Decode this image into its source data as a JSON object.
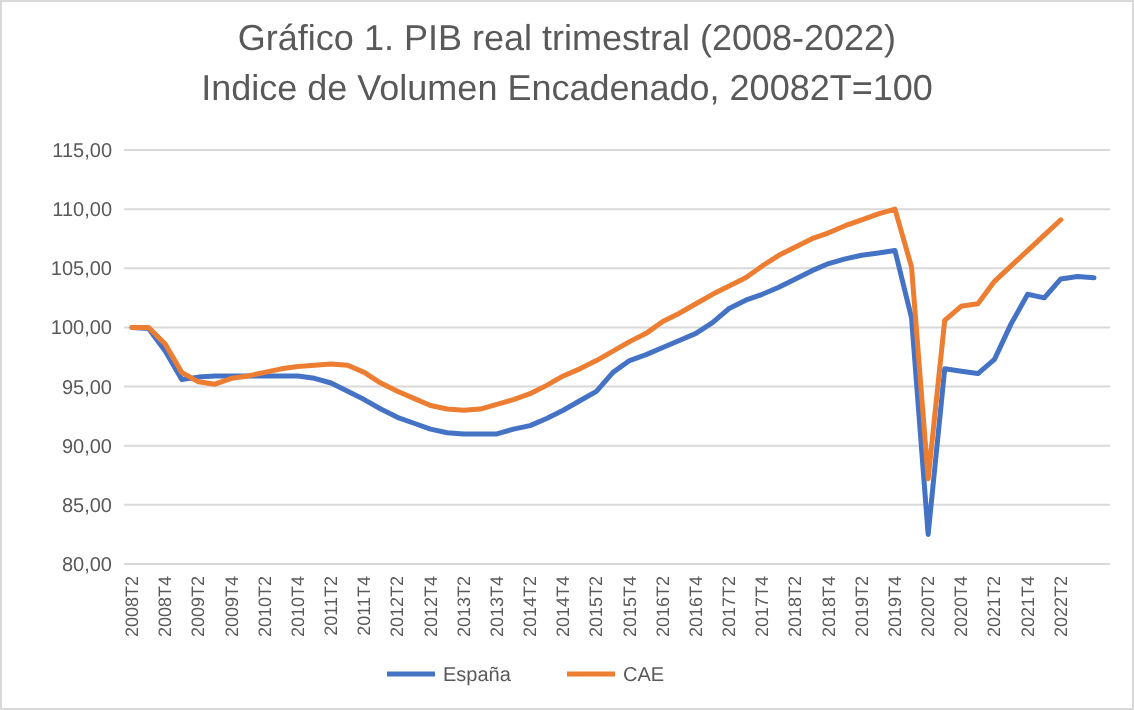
{
  "chart_data": {
    "type": "line",
    "title": "Gráfico 1. PIB real trimestral (2008-2022)",
    "subtitle": "Indice de Volumen Encadenado, 20082T=100",
    "categories": [
      "2008T2",
      null,
      "2008T4",
      null,
      "2009T2",
      null,
      "2009T4",
      null,
      "2010T2",
      null,
      "2010T4",
      null,
      "2011T2",
      null,
      "2011T4",
      null,
      "2012T2",
      null,
      "2012T4",
      null,
      "2013T2",
      null,
      "2013T4",
      null,
      "2014T2",
      null,
      "2014T4",
      null,
      "2015T2",
      null,
      "2015T4",
      null,
      "2016T2",
      null,
      "2016T4",
      null,
      "2017T2",
      null,
      "2017T4",
      null,
      "2018T2",
      null,
      "2018T4",
      null,
      "2019T2",
      null,
      "2019T4",
      null,
      "2020T2",
      null,
      "2020T4",
      null,
      "2021T2",
      null,
      "2021T4",
      null,
      "2022T2",
      null,
      null
    ],
    "series": [
      {
        "name": "España",
        "color": "#4472c4",
        "values": [
          100,
          99.9,
          98.0,
          95.6,
          95.8,
          95.9,
          95.9,
          95.9,
          95.9,
          95.9,
          95.9,
          95.7,
          95.3,
          94.6,
          93.9,
          93.1,
          92.4,
          91.9,
          91.4,
          91.1,
          91.0,
          91.0,
          91.0,
          91.4,
          91.7,
          92.3,
          93.0,
          93.8,
          94.6,
          96.2,
          97.2,
          97.7,
          98.3,
          98.9,
          99.5,
          100.4,
          101.6,
          102.3,
          102.8,
          103.4,
          104.1,
          104.8,
          105.4,
          105.8,
          106.1,
          106.3,
          106.5,
          100.8,
          82.5,
          96.5,
          96.3,
          96.1,
          97.3,
          100.3,
          102.8,
          102.5,
          104.1,
          104.3,
          104.2
        ]
      },
      {
        "name": "CAE",
        "color": "#ed7d31",
        "values": [
          100,
          100,
          98.6,
          96.2,
          95.4,
          95.2,
          95.7,
          95.9,
          96.2,
          96.5,
          96.7,
          96.8,
          96.9,
          96.8,
          96.2,
          95.3,
          94.6,
          94.0,
          93.4,
          93.1,
          93.0,
          93.1,
          93.5,
          93.9,
          94.4,
          95.1,
          95.9,
          96.5,
          97.2,
          98.0,
          98.8,
          99.5,
          100.5,
          101.2,
          102.0,
          102.8,
          103.5,
          104.2,
          105.2,
          106.1,
          106.8,
          107.5,
          108.0,
          108.6,
          109.1,
          109.6,
          110.0,
          105.1,
          87.2,
          100.6,
          101.8,
          102.0,
          103.9,
          105.2,
          106.5,
          107.8,
          109.1,
          null,
          null
        ]
      }
    ],
    "ylim": [
      80,
      115
    ],
    "yticks": [
      {
        "value": 80,
        "label": "80,00"
      },
      {
        "value": 85,
        "label": "85,00"
      },
      {
        "value": 90,
        "label": "90,00"
      },
      {
        "value": 95,
        "label": "95,00"
      },
      {
        "value": 100,
        "label": "100,00"
      },
      {
        "value": 105,
        "label": "105,00"
      },
      {
        "value": 110,
        "label": "110,00"
      },
      {
        "value": 115,
        "label": "115,00"
      }
    ],
    "grid": "y",
    "legend": "bottom",
    "marker": "none",
    "line_style": "solid"
  }
}
